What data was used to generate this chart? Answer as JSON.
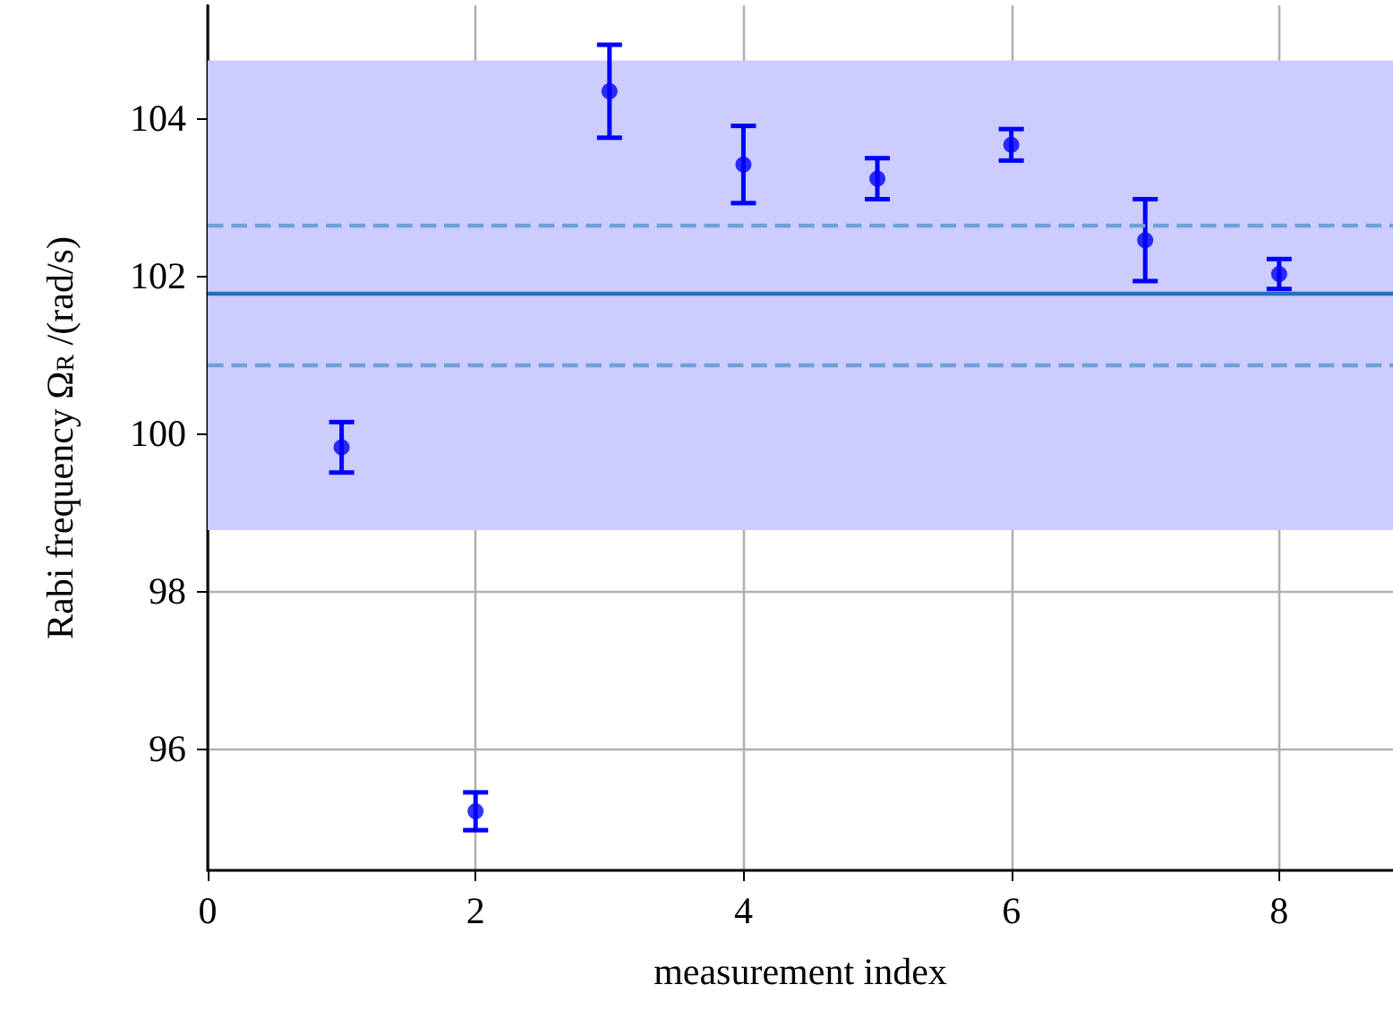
{
  "chart_data": {
    "type": "scatter",
    "xlabel": "measurement index",
    "ylabel": "Rabi frequency Ω$_{R}$ /(rad/s)",
    "x": [
      1,
      2,
      3,
      4,
      5,
      6,
      7,
      8
    ],
    "series": [
      {
        "color": "#0000ff",
        "values": [
          99.82,
          95.2,
          104.34,
          103.41,
          103.23,
          103.66,
          102.45,
          102.02
        ],
        "errors": [
          0.32,
          0.24,
          0.59,
          0.49,
          0.26,
          0.2,
          0.52,
          0.19
        ]
      }
    ],
    "xlim": [
      0,
      8.85
    ],
    "xticks": [
      0,
      2,
      4,
      6,
      8
    ],
    "ylim": [
      94.45,
      105.43
    ],
    "yticks": [
      96,
      98,
      100,
      102,
      104
    ],
    "ref_lines": [
      {
        "axis": "y",
        "value": 101.77,
        "color": "#1f6fbf",
        "line_style": "solid"
      },
      {
        "axis": "y",
        "value": 102.64,
        "color": "#6fa0d8",
        "line_style": "dashed"
      },
      {
        "axis": "y",
        "value": 100.86,
        "color": "#6fa0d8",
        "line_style": "dashed"
      }
    ],
    "bands": [
      {
        "axis": "y",
        "from": 98.77,
        "to": 104.73,
        "color": "#ccccff"
      }
    ],
    "grid": true,
    "marker": "circle"
  }
}
